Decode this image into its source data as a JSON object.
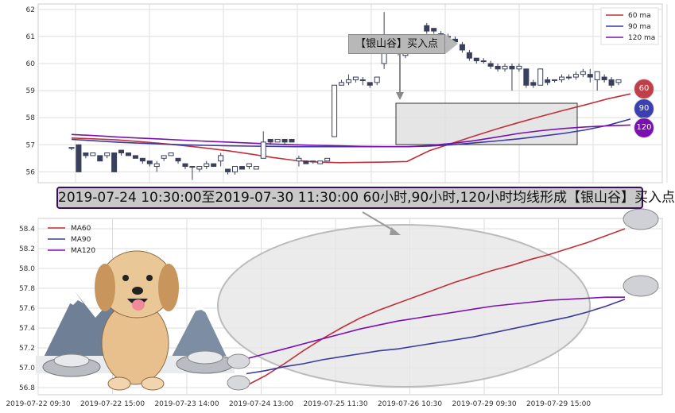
{
  "banner_text": "2019-07-24 10:30:00至2019-07-30 11:30:00 60小时,90小时,120小时均线形成【银山谷】买入点",
  "callout_text": "【银山谷】买入点",
  "badges": [
    "60",
    "90",
    "120"
  ],
  "colors": {
    "ma60": "#c0303a",
    "ma90": "#3a3aa0",
    "ma120": "#7a10b0",
    "candle_dark": "#3a3f5c",
    "grid": "#dddddd"
  },
  "chart_data": [
    {
      "type": "candlestick",
      "title": "",
      "ylim": [
        55.6,
        62.2
      ],
      "yticks": [
        56,
        57,
        58,
        59,
        60,
        61,
        62
      ],
      "legend_position": "top-right",
      "grid": true,
      "legend": [
        "60 ma",
        "90 ma",
        "120 ma"
      ],
      "candles": [
        [
          56.9,
          56.9,
          56.8,
          56.9
        ],
        [
          57.0,
          56.0,
          56.0,
          57.0
        ],
        [
          56.7,
          56.6,
          56.5,
          56.7
        ],
        [
          56.6,
          56.7,
          56.6,
          56.7
        ],
        [
          56.6,
          56.4,
          56.4,
          56.6
        ],
        [
          56.6,
          56.7,
          56.5,
          56.7
        ],
        [
          56.7,
          56.0,
          56.0,
          56.7
        ],
        [
          56.8,
          56.7,
          56.6,
          56.8
        ],
        [
          56.7,
          56.6,
          56.6,
          56.7
        ],
        [
          56.6,
          56.5,
          56.5,
          56.6
        ],
        [
          56.5,
          56.4,
          56.3,
          56.5
        ],
        [
          56.4,
          56.3,
          56.2,
          56.4
        ],
        [
          56.2,
          56.3,
          56.0,
          56.4
        ],
        [
          56.5,
          56.6,
          56.4,
          56.6
        ],
        [
          56.6,
          56.7,
          56.6,
          56.7
        ],
        [
          56.5,
          56.4,
          56.3,
          56.5
        ],
        [
          56.3,
          56.2,
          56.1,
          56.3
        ],
        [
          56.2,
          56.2,
          55.7,
          56.2
        ],
        [
          56.1,
          56.2,
          56.0,
          56.2
        ],
        [
          56.2,
          56.3,
          56.1,
          56.4
        ],
        [
          56.3,
          56.2,
          56.2,
          56.3
        ],
        [
          56.4,
          56.6,
          56.2,
          56.7
        ],
        [
          56.1,
          56.0,
          55.9,
          56.1
        ],
        [
          56.0,
          56.2,
          55.9,
          56.2
        ],
        [
          56.2,
          56.1,
          56.1,
          56.2
        ],
        [
          56.2,
          56.3,
          56.1,
          56.3
        ],
        [
          56.1,
          56.2,
          56.1,
          56.2
        ],
        [
          56.5,
          57.1,
          56.5,
          57.5
        ],
        [
          57.2,
          57.1,
          57.0,
          57.2
        ],
        [
          57.1,
          57.2,
          57.1,
          57.2
        ],
        [
          57.2,
          57.1,
          57.0,
          57.2
        ],
        [
          57.2,
          57.1,
          57.1,
          57.2
        ],
        [
          56.4,
          56.5,
          56.2,
          56.6
        ],
        [
          56.4,
          56.3,
          56.3,
          56.4
        ],
        [
          56.4,
          56.4,
          56.3,
          56.4
        ],
        [
          56.3,
          56.4,
          56.3,
          56.4
        ],
        [
          56.4,
          56.5,
          56.4,
          56.5
        ],
        [
          57.3,
          59.2,
          57.3,
          59.2
        ],
        [
          59.2,
          59.3,
          59.2,
          59.4
        ],
        [
          59.3,
          59.4,
          59.2,
          59.6
        ],
        [
          59.4,
          59.5,
          59.3,
          59.5
        ],
        [
          59.4,
          59.4,
          59.2,
          59.5
        ],
        [
          59.3,
          59.2,
          59.1,
          59.3
        ],
        [
          59.3,
          59.5,
          59.2,
          59.5
        ],
        [
          60.0,
          60.5,
          59.8,
          61.9
        ],
        [
          60.6,
          60.5,
          60.4,
          60.6
        ],
        [
          60.5,
          60.4,
          60.3,
          60.6
        ],
        [
          60.3,
          60.5,
          60.2,
          60.6
        ],
        [
          60.6,
          60.5,
          60.4,
          60.7
        ],
        [
          60.6,
          60.8,
          60.5,
          60.9
        ],
        [
          61.4,
          61.2,
          61.1,
          61.5
        ],
        [
          61.3,
          61.2,
          61.1,
          61.3
        ],
        [
          61.1,
          61.1,
          61.0,
          61.2
        ],
        [
          61.0,
          61.0,
          60.9,
          61.1
        ],
        [
          60.9,
          60.8,
          60.7,
          61.0
        ],
        [
          60.7,
          60.5,
          60.4,
          60.8
        ],
        [
          60.4,
          60.2,
          60.1,
          60.5
        ],
        [
          60.2,
          60.1,
          60.0,
          60.2
        ],
        [
          60.1,
          60.1,
          60.0,
          60.2
        ],
        [
          60.0,
          59.9,
          59.8,
          60.1
        ],
        [
          59.9,
          59.8,
          59.7,
          60.0
        ],
        [
          59.8,
          59.9,
          59.7,
          60.0
        ],
        [
          59.9,
          59.8,
          59.0,
          60.0
        ],
        [
          59.8,
          59.9,
          59.7,
          60.0
        ],
        [
          59.8,
          59.2,
          59.1,
          59.8
        ],
        [
          59.3,
          59.2,
          59.1,
          59.4
        ],
        [
          59.2,
          59.8,
          59.2,
          59.8
        ],
        [
          59.4,
          59.3,
          59.2,
          59.5
        ],
        [
          59.4,
          59.4,
          59.3,
          59.4
        ],
        [
          59.4,
          59.5,
          59.3,
          59.6
        ],
        [
          59.5,
          59.5,
          59.4,
          59.6
        ],
        [
          59.5,
          59.6,
          59.4,
          59.7
        ],
        [
          59.6,
          59.7,
          59.5,
          59.8
        ],
        [
          59.6,
          59.5,
          59.3,
          59.8
        ],
        [
          59.4,
          59.7,
          59.0,
          59.7
        ],
        [
          59.5,
          59.4,
          59.3,
          59.6
        ],
        [
          59.4,
          59.2,
          59.1,
          59.5
        ],
        [
          59.3,
          59.4,
          59.2,
          59.4
        ]
      ],
      "series": [
        {
          "name": "60 ma",
          "values": [
            57.25,
            57.22,
            57.18,
            57.12,
            57.05,
            56.97,
            56.88,
            56.78,
            56.66,
            56.53,
            56.42,
            56.36,
            56.34,
            56.35,
            56.36,
            56.38,
            56.78,
            57.05,
            57.32,
            57.58,
            57.82,
            58.05,
            58.27,
            58.48,
            58.7,
            58.88
          ]
        },
        {
          "name": "90 ma",
          "values": [
            57.2,
            57.15,
            57.1,
            57.06,
            57.03,
            57.0,
            56.98,
            56.96,
            56.95,
            56.94,
            56.93,
            56.93,
            56.93,
            56.93,
            56.93,
            56.93,
            56.95,
            57.0,
            57.07,
            57.14,
            57.22,
            57.32,
            57.42,
            57.55,
            57.72,
            57.95
          ]
        },
        {
          "name": "120 ma",
          "values": [
            57.38,
            57.34,
            57.29,
            57.25,
            57.21,
            57.17,
            57.13,
            57.1,
            57.06,
            57.03,
            57.0,
            56.98,
            56.96,
            56.94,
            56.93,
            56.93,
            56.97,
            57.05,
            57.15,
            57.28,
            57.42,
            57.52,
            57.6,
            57.66,
            57.7,
            57.73
          ]
        }
      ]
    },
    {
      "type": "line",
      "title": "",
      "ylim": [
        56.75,
        58.5
      ],
      "yticks": [
        "58.4",
        "58.2",
        "58.0",
        "57.8",
        "57.6",
        "57.4",
        "57.2",
        "57.0",
        "56.8"
      ],
      "xticks": [
        "2019-07-22 09:30",
        "2019-07-22 15:00",
        "2019-07-23 14:00",
        "2019-07-24 13:00",
        "2019-07-25 11:30",
        "2019-07-26 10:30",
        "2019-07-29 09:30",
        "2019-07-29 15:00"
      ],
      "legend_position": "top-left",
      "grid": true,
      "series": [
        {
          "name": "MA60",
          "values": [
            56.82,
            56.92,
            57.04,
            57.17,
            57.29,
            57.4,
            57.5,
            57.58,
            57.65,
            57.72,
            57.79,
            57.86,
            57.92,
            57.98,
            58.03,
            58.09,
            58.14,
            58.2,
            58.26,
            58.33,
            58.4
          ]
        },
        {
          "name": "MA90",
          "values": [
            56.94,
            56.97,
            57.01,
            57.04,
            57.08,
            57.11,
            57.14,
            57.17,
            57.19,
            57.22,
            57.25,
            57.28,
            57.31,
            57.35,
            57.39,
            57.43,
            57.47,
            57.51,
            57.56,
            57.62,
            57.69
          ]
        },
        {
          "name": "MA120",
          "values": [
            57.09,
            57.14,
            57.19,
            57.24,
            57.29,
            57.34,
            57.39,
            57.43,
            57.47,
            57.5,
            57.53,
            57.56,
            57.59,
            57.62,
            57.64,
            57.66,
            57.68,
            57.69,
            57.7,
            57.71,
            57.71
          ]
        }
      ]
    }
  ]
}
